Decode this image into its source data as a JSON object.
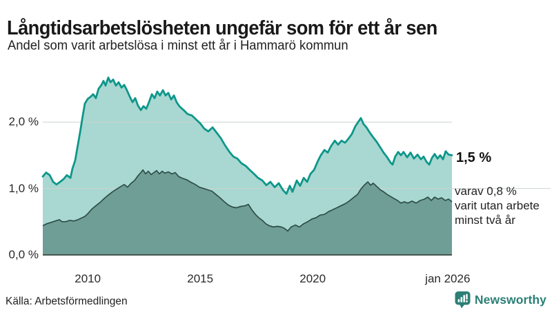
{
  "header": {
    "title": "Långtidsarbetslösheten ungefär som för ett år sen",
    "subtitle": "Andel som varit arbetslösa i minst ett år i Hammarö kommun"
  },
  "main": {
    "annotation_total": "1,5 %",
    "annotation_subset": {
      "lines": [
        "varav 0,8 %",
        "varit utan arbete",
        "minst två år"
      ]
    }
  },
  "footer": {
    "source": "Källa: Arbetsförmedlingen",
    "brand_name": "Newsworthy",
    "brand_color": "#2b7f76"
  },
  "chart_data": {
    "type": "area",
    "title": "Långtidsarbetslösheten ungefär som för ett år sen",
    "subtitle": "Andel som varit arbetslösa i minst ett år i Hammarö kommun",
    "unit": "%",
    "x_range": [
      2008.0,
      2026.19
    ],
    "ylim": [
      0,
      2.75
    ],
    "grid": "horizontal-only",
    "legend_position": "end-of-line-labels",
    "colors": {
      "grid": "#ccd3d1",
      "axis": "#46564f"
    },
    "y_axis": {
      "ticks": [
        {
          "value": 2.0,
          "label": "2,0 %",
          "extend_to_right": false
        },
        {
          "value": 1.0,
          "label": "1,0 %",
          "extend_to_right": true
        },
        {
          "value": 0.0,
          "label": "0,0 %",
          "extend_to_right": false
        }
      ]
    },
    "x_axis": {
      "ticks": [
        {
          "year": 2010,
          "label": "2010"
        },
        {
          "year": 2015,
          "label": "2015"
        },
        {
          "year": 2020,
          "label": "2020"
        },
        {
          "year": 2026,
          "label": "jan 2026"
        }
      ]
    },
    "series": [
      {
        "name": "Andel som varit arbetslösa i minst ett år",
        "end_label": "1,5 %",
        "end_value": 1.5,
        "stroke": "#0e968a",
        "fill": "#a8d8d1",
        "points": [
          [
            2008.0,
            1.18
          ],
          [
            2008.15,
            1.24
          ],
          [
            2008.31,
            1.2
          ],
          [
            2008.46,
            1.1
          ],
          [
            2008.61,
            1.06
          ],
          [
            2008.77,
            1.1
          ],
          [
            2008.92,
            1.14
          ],
          [
            2009.07,
            1.2
          ],
          [
            2009.23,
            1.16
          ],
          [
            2009.32,
            1.3
          ],
          [
            2009.44,
            1.42
          ],
          [
            2009.53,
            1.6
          ],
          [
            2009.66,
            1.85
          ],
          [
            2009.78,
            2.1
          ],
          [
            2009.87,
            2.28
          ],
          [
            2010.0,
            2.35
          ],
          [
            2010.12,
            2.38
          ],
          [
            2010.24,
            2.42
          ],
          [
            2010.36,
            2.36
          ],
          [
            2010.48,
            2.5
          ],
          [
            2010.61,
            2.56
          ],
          [
            2010.7,
            2.62
          ],
          [
            2010.79,
            2.55
          ],
          [
            2010.91,
            2.67
          ],
          [
            2011.01,
            2.6
          ],
          [
            2011.13,
            2.64
          ],
          [
            2011.25,
            2.55
          ],
          [
            2011.37,
            2.6
          ],
          [
            2011.5,
            2.52
          ],
          [
            2011.62,
            2.56
          ],
          [
            2011.74,
            2.48
          ],
          [
            2011.87,
            2.38
          ],
          [
            2011.99,
            2.3
          ],
          [
            2012.11,
            2.36
          ],
          [
            2012.23,
            2.25
          ],
          [
            2012.36,
            2.18
          ],
          [
            2012.48,
            2.24
          ],
          [
            2012.6,
            2.2
          ],
          [
            2012.72,
            2.3
          ],
          [
            2012.85,
            2.42
          ],
          [
            2012.97,
            2.36
          ],
          [
            2013.09,
            2.46
          ],
          [
            2013.21,
            2.4
          ],
          [
            2013.34,
            2.48
          ],
          [
            2013.46,
            2.4
          ],
          [
            2013.58,
            2.44
          ],
          [
            2013.71,
            2.34
          ],
          [
            2013.83,
            2.4
          ],
          [
            2013.95,
            2.3
          ],
          [
            2014.07,
            2.24
          ],
          [
            2014.26,
            2.18
          ],
          [
            2014.44,
            2.12
          ],
          [
            2014.63,
            2.1
          ],
          [
            2014.81,
            2.04
          ],
          [
            2015.0,
            1.98
          ],
          [
            2015.18,
            1.9
          ],
          [
            2015.36,
            1.86
          ],
          [
            2015.55,
            1.92
          ],
          [
            2015.73,
            1.84
          ],
          [
            2015.91,
            1.76
          ],
          [
            2016.1,
            1.65
          ],
          [
            2016.28,
            1.56
          ],
          [
            2016.47,
            1.48
          ],
          [
            2016.65,
            1.45
          ],
          [
            2016.83,
            1.38
          ],
          [
            2017.02,
            1.34
          ],
          [
            2017.2,
            1.28
          ],
          [
            2017.39,
            1.22
          ],
          [
            2017.57,
            1.16
          ],
          [
            2017.76,
            1.12
          ],
          [
            2017.94,
            1.05
          ],
          [
            2018.12,
            1.1
          ],
          [
            2018.31,
            1.02
          ],
          [
            2018.49,
            1.08
          ],
          [
            2018.67,
            0.98
          ],
          [
            2018.83,
            0.92
          ],
          [
            2018.98,
            1.04
          ],
          [
            2019.1,
            0.95
          ],
          [
            2019.29,
            1.12
          ],
          [
            2019.44,
            1.04
          ],
          [
            2019.6,
            1.16
          ],
          [
            2019.75,
            1.1
          ],
          [
            2019.9,
            1.22
          ],
          [
            2020.06,
            1.28
          ],
          [
            2020.21,
            1.4
          ],
          [
            2020.36,
            1.5
          ],
          [
            2020.52,
            1.58
          ],
          [
            2020.67,
            1.54
          ],
          [
            2020.82,
            1.64
          ],
          [
            2020.98,
            1.72
          ],
          [
            2021.13,
            1.66
          ],
          [
            2021.28,
            1.72
          ],
          [
            2021.44,
            1.69
          ],
          [
            2021.59,
            1.75
          ],
          [
            2021.74,
            1.82
          ],
          [
            2021.9,
            1.94
          ],
          [
            2022.02,
            2.0
          ],
          [
            2022.14,
            2.06
          ],
          [
            2022.26,
            1.97
          ],
          [
            2022.39,
            1.92
          ],
          [
            2022.54,
            1.84
          ],
          [
            2022.69,
            1.77
          ],
          [
            2022.85,
            1.7
          ],
          [
            2023.0,
            1.62
          ],
          [
            2023.15,
            1.54
          ],
          [
            2023.31,
            1.47
          ],
          [
            2023.46,
            1.39
          ],
          [
            2023.55,
            1.36
          ],
          [
            2023.67,
            1.48
          ],
          [
            2023.8,
            1.55
          ],
          [
            2023.92,
            1.5
          ],
          [
            2024.04,
            1.55
          ],
          [
            2024.2,
            1.47
          ],
          [
            2024.35,
            1.54
          ],
          [
            2024.5,
            1.45
          ],
          [
            2024.66,
            1.51
          ],
          [
            2024.81,
            1.44
          ],
          [
            2024.93,
            1.48
          ],
          [
            2025.06,
            1.4
          ],
          [
            2025.18,
            1.36
          ],
          [
            2025.3,
            1.46
          ],
          [
            2025.42,
            1.52
          ],
          [
            2025.55,
            1.45
          ],
          [
            2025.67,
            1.5
          ],
          [
            2025.79,
            1.44
          ],
          [
            2025.91,
            1.56
          ],
          [
            2026.04,
            1.51
          ],
          [
            2026.19,
            1.5
          ]
        ]
      },
      {
        "name": "varav utan arbete minst två år",
        "end_label": "varav 0,8 % varit utan arbete minst två år",
        "end_value": 0.8,
        "stroke": "#2e4d47",
        "fill": "#6f9e96",
        "points": [
          [
            2008.0,
            0.44
          ],
          [
            2008.18,
            0.47
          ],
          [
            2008.37,
            0.49
          ],
          [
            2008.55,
            0.51
          ],
          [
            2008.74,
            0.53
          ],
          [
            2008.86,
            0.5
          ],
          [
            2009.01,
            0.5
          ],
          [
            2009.2,
            0.52
          ],
          [
            2009.38,
            0.51
          ],
          [
            2009.56,
            0.53
          ],
          [
            2009.75,
            0.56
          ],
          [
            2009.87,
            0.58
          ],
          [
            2010.0,
            0.62
          ],
          [
            2010.18,
            0.69
          ],
          [
            2010.36,
            0.74
          ],
          [
            2010.55,
            0.79
          ],
          [
            2010.73,
            0.85
          ],
          [
            2010.91,
            0.9
          ],
          [
            2011.1,
            0.95
          ],
          [
            2011.28,
            0.99
          ],
          [
            2011.47,
            1.03
          ],
          [
            2011.62,
            1.06
          ],
          [
            2011.77,
            1.02
          ],
          [
            2011.93,
            1.08
          ],
          [
            2012.08,
            1.12
          ],
          [
            2012.23,
            1.19
          ],
          [
            2012.36,
            1.24
          ],
          [
            2012.45,
            1.28
          ],
          [
            2012.57,
            1.22
          ],
          [
            2012.69,
            1.26
          ],
          [
            2012.82,
            1.21
          ],
          [
            2012.94,
            1.24
          ],
          [
            2013.06,
            1.27
          ],
          [
            2013.18,
            1.22
          ],
          [
            2013.31,
            1.26
          ],
          [
            2013.43,
            1.23
          ],
          [
            2013.58,
            1.25
          ],
          [
            2013.74,
            1.22
          ],
          [
            2013.89,
            1.24
          ],
          [
            2014.04,
            1.18
          ],
          [
            2014.23,
            1.15
          ],
          [
            2014.41,
            1.13
          ],
          [
            2014.6,
            1.09
          ],
          [
            2014.78,
            1.06
          ],
          [
            2014.96,
            1.02
          ],
          [
            2015.15,
            1.0
          ],
          [
            2015.33,
            0.98
          ],
          [
            2015.52,
            0.96
          ],
          [
            2015.7,
            0.91
          ],
          [
            2015.88,
            0.86
          ],
          [
            2016.07,
            0.8
          ],
          [
            2016.25,
            0.75
          ],
          [
            2016.44,
            0.72
          ],
          [
            2016.62,
            0.71
          ],
          [
            2016.8,
            0.73
          ],
          [
            2016.99,
            0.74
          ],
          [
            2017.14,
            0.76
          ],
          [
            2017.29,
            0.68
          ],
          [
            2017.45,
            0.61
          ],
          [
            2017.6,
            0.56
          ],
          [
            2017.76,
            0.52
          ],
          [
            2017.91,
            0.47
          ],
          [
            2018.06,
            0.44
          ],
          [
            2018.25,
            0.42
          ],
          [
            2018.43,
            0.43
          ],
          [
            2018.61,
            0.42
          ],
          [
            2018.74,
            0.4
          ],
          [
            2018.89,
            0.36
          ],
          [
            2019.04,
            0.42
          ],
          [
            2019.23,
            0.45
          ],
          [
            2019.41,
            0.42
          ],
          [
            2019.6,
            0.47
          ],
          [
            2019.78,
            0.5
          ],
          [
            2019.96,
            0.54
          ],
          [
            2020.15,
            0.56
          ],
          [
            2020.33,
            0.6
          ],
          [
            2020.52,
            0.61
          ],
          [
            2020.7,
            0.65
          ],
          [
            2020.89,
            0.68
          ],
          [
            2021.07,
            0.71
          ],
          [
            2021.25,
            0.74
          ],
          [
            2021.44,
            0.77
          ],
          [
            2021.62,
            0.81
          ],
          [
            2021.8,
            0.86
          ],
          [
            2021.99,
            0.91
          ],
          [
            2022.14,
            0.99
          ],
          [
            2022.29,
            1.05
          ],
          [
            2022.45,
            1.1
          ],
          [
            2022.57,
            1.05
          ],
          [
            2022.69,
            1.08
          ],
          [
            2022.85,
            1.03
          ],
          [
            2023.0,
            0.98
          ],
          [
            2023.15,
            0.95
          ],
          [
            2023.31,
            0.91
          ],
          [
            2023.46,
            0.88
          ],
          [
            2023.61,
            0.85
          ],
          [
            2023.77,
            0.82
          ],
          [
            2023.92,
            0.78
          ],
          [
            2024.07,
            0.8
          ],
          [
            2024.23,
            0.78
          ],
          [
            2024.41,
            0.81
          ],
          [
            2024.6,
            0.78
          ],
          [
            2024.78,
            0.82
          ],
          [
            2024.97,
            0.84
          ],
          [
            2025.12,
            0.87
          ],
          [
            2025.27,
            0.82
          ],
          [
            2025.42,
            0.87
          ],
          [
            2025.58,
            0.84
          ],
          [
            2025.73,
            0.86
          ],
          [
            2025.89,
            0.82
          ],
          [
            2026.04,
            0.84
          ],
          [
            2026.19,
            0.8
          ]
        ]
      }
    ]
  }
}
